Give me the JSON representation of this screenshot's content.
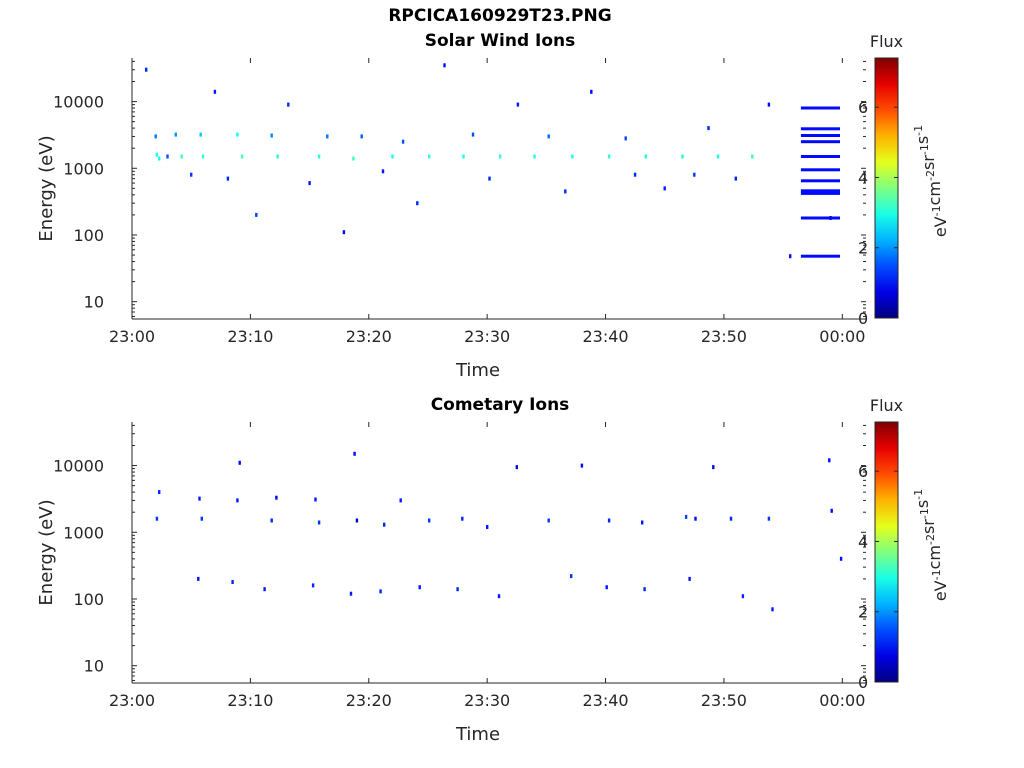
{
  "figure": {
    "title": "RPCICA160929T23.PNG"
  },
  "colors": {
    "colormap": "jet",
    "axis": "#262626",
    "background": "#ffffff"
  },
  "chart_data": [
    {
      "type": "heatmap",
      "title": "Solar Wind Ions",
      "xlabel": "Time",
      "ylabel": "Energy (eV)",
      "xticks": [
        "23:00",
        "23:10",
        "23:20",
        "23:30",
        "23:40",
        "23:50",
        "00:00"
      ],
      "xlim": [
        "23:00",
        "00:02"
      ],
      "yscale": "log",
      "yticks": [
        10,
        100,
        1000,
        10000
      ],
      "ytick_labels": [
        "10",
        "100",
        "1000",
        "10000"
      ],
      "ylim": [
        5.5,
        45000
      ],
      "colorbar": {
        "label": "eV-1cm-2sr-1s-1",
        "title": "Flux",
        "ticks": [
          0,
          2,
          4,
          6
        ],
        "range": [
          0,
          7.4
        ]
      },
      "grid": false,
      "cells": [
        [
          1.2,
          30000,
          1.2
        ],
        [
          2.0,
          3000,
          1.8
        ],
        [
          2.1,
          1600,
          3.0
        ],
        [
          2.3,
          1400,
          2.9
        ],
        [
          3.0,
          1500,
          1.5
        ],
        [
          3.7,
          3200,
          2.0
        ],
        [
          4.2,
          1500,
          3.2
        ],
        [
          5.0,
          800,
          1.3
        ],
        [
          5.8,
          3200,
          2.4
        ],
        [
          6.0,
          1500,
          3.1
        ],
        [
          7.0,
          14000,
          1.1
        ],
        [
          8.1,
          700,
          1.2
        ],
        [
          8.9,
          3200,
          2.8
        ],
        [
          9.3,
          1500,
          3.3
        ],
        [
          10.5,
          200,
          1.4
        ],
        [
          11.8,
          3100,
          1.9
        ],
        [
          12.3,
          1500,
          3.0
        ],
        [
          13.2,
          9000,
          1.2
        ],
        [
          15.0,
          600,
          1.1
        ],
        [
          15.8,
          1500,
          3.1
        ],
        [
          16.5,
          3000,
          1.8
        ],
        [
          17.9,
          110,
          1.0
        ],
        [
          18.7,
          1400,
          3.2
        ],
        [
          19.4,
          3000,
          1.6
        ],
        [
          21.2,
          900,
          1.1
        ],
        [
          22.0,
          1500,
          3.0
        ],
        [
          22.9,
          2500,
          1.5
        ],
        [
          24.1,
          300,
          1.2
        ],
        [
          25.1,
          1500,
          3.1
        ],
        [
          26.4,
          35000,
          1.0
        ],
        [
          28.0,
          1500,
          3.0
        ],
        [
          28.8,
          3200,
          1.5
        ],
        [
          30.2,
          700,
          1.2
        ],
        [
          31.1,
          1500,
          3.1
        ],
        [
          32.6,
          9000,
          1.1
        ],
        [
          34.0,
          1500,
          3.0
        ],
        [
          35.2,
          3000,
          1.7
        ],
        [
          36.6,
          450,
          1.2
        ],
        [
          37.2,
          1500,
          3.0
        ],
        [
          38.8,
          14000,
          1.0
        ],
        [
          40.3,
          1500,
          3.1
        ],
        [
          41.7,
          2800,
          1.4
        ],
        [
          42.5,
          800,
          1.2
        ],
        [
          43.4,
          1500,
          3.0
        ],
        [
          45.0,
          500,
          1.1
        ],
        [
          46.5,
          1500,
          3.0
        ],
        [
          47.5,
          800,
          1.3
        ],
        [
          48.7,
          4000,
          1.2
        ],
        [
          49.5,
          1500,
          3.0
        ],
        [
          51.0,
          700,
          1.2
        ],
        [
          52.4,
          1500,
          3.1
        ],
        [
          53.8,
          9000,
          1.0
        ],
        [
          55.6,
          48,
          1.0
        ],
        [
          59.0,
          180,
          1.0
        ]
      ],
      "bands": [
        [
          56.5,
          59.8,
          8000,
          1.0
        ],
        [
          56.5,
          59.8,
          3900,
          1.0
        ],
        [
          56.5,
          59.8,
          3100,
          1.0
        ],
        [
          56.5,
          59.8,
          2500,
          1.0
        ],
        [
          56.5,
          59.8,
          1500,
          1.0
        ],
        [
          56.5,
          59.8,
          950,
          1.0
        ],
        [
          56.5,
          59.8,
          650,
          1.0
        ],
        [
          56.5,
          59.8,
          460,
          1.0
        ],
        [
          56.5,
          59.8,
          420,
          1.0
        ],
        [
          56.5,
          59.8,
          180,
          1.0
        ],
        [
          56.5,
          59.8,
          48,
          1.0
        ]
      ]
    },
    {
      "type": "heatmap",
      "title": "Cometary Ions",
      "xlabel": "Time",
      "ylabel": "Energy (eV)",
      "xticks": [
        "23:00",
        "23:10",
        "23:20",
        "23:30",
        "23:40",
        "23:50",
        "00:00"
      ],
      "xlim": [
        "23:00",
        "00:02"
      ],
      "yscale": "log",
      "yticks": [
        10,
        100,
        1000,
        10000
      ],
      "ytick_labels": [
        "10",
        "100",
        "1000",
        "10000"
      ],
      "ylim": [
        5.5,
        45000
      ],
      "colorbar": {
        "label": "eV-1cm-2sr-1s-1",
        "title": "Flux",
        "ticks": [
          0,
          2,
          4,
          6
        ],
        "range": [
          0,
          7.4
        ]
      },
      "grid": false,
      "cells": [
        [
          2.1,
          1600,
          1.3
        ],
        [
          2.3,
          4000,
          1.2
        ],
        [
          5.7,
          3200,
          1.1
        ],
        [
          5.9,
          1600,
          1.3
        ],
        [
          8.9,
          3000,
          1.1
        ],
        [
          9.1,
          11000,
          1.0
        ],
        [
          11.8,
          1500,
          1.2
        ],
        [
          12.2,
          3300,
          1.0
        ],
        [
          15.5,
          3100,
          1.1
        ],
        [
          15.8,
          1400,
          1.3
        ],
        [
          18.8,
          15000,
          1.0
        ],
        [
          19.0,
          1500,
          0.5
        ],
        [
          21.3,
          1300,
          1.2
        ],
        [
          22.7,
          3000,
          1.1
        ],
        [
          25.1,
          1500,
          1.3
        ],
        [
          27.9,
          1600,
          1.2
        ],
        [
          30.0,
          1200,
          1.1
        ],
        [
          32.5,
          9500,
          1.0
        ],
        [
          35.2,
          1500,
          1.3
        ],
        [
          38.0,
          10000,
          1.0
        ],
        [
          40.3,
          1500,
          1.2
        ],
        [
          43.1,
          1400,
          1.1
        ],
        [
          46.8,
          1700,
          1.4
        ],
        [
          47.6,
          1600,
          1.0
        ],
        [
          49.1,
          9500,
          1.0
        ],
        [
          50.6,
          1600,
          1.2
        ],
        [
          53.8,
          1600,
          1.3
        ],
        [
          58.9,
          12000,
          1.0
        ],
        [
          59.1,
          2100,
          1.0
        ],
        [
          59.9,
          400,
          1.0
        ],
        [
          5.6,
          200,
          1.1
        ],
        [
          8.5,
          180,
          1.2
        ],
        [
          11.2,
          140,
          1.1
        ],
        [
          15.3,
          160,
          1.2
        ],
        [
          18.5,
          120,
          1.1
        ],
        [
          21.0,
          130,
          1.2
        ],
        [
          24.3,
          150,
          1.1
        ],
        [
          27.5,
          140,
          1.2
        ],
        [
          31.0,
          110,
          1.1
        ],
        [
          37.1,
          220,
          1.3
        ],
        [
          40.1,
          150,
          1.1
        ],
        [
          43.3,
          140,
          1.2
        ],
        [
          47.1,
          200,
          1.1
        ],
        [
          51.6,
          110,
          1.2
        ],
        [
          54.1,
          70,
          1.1
        ]
      ],
      "bands": []
    }
  ]
}
